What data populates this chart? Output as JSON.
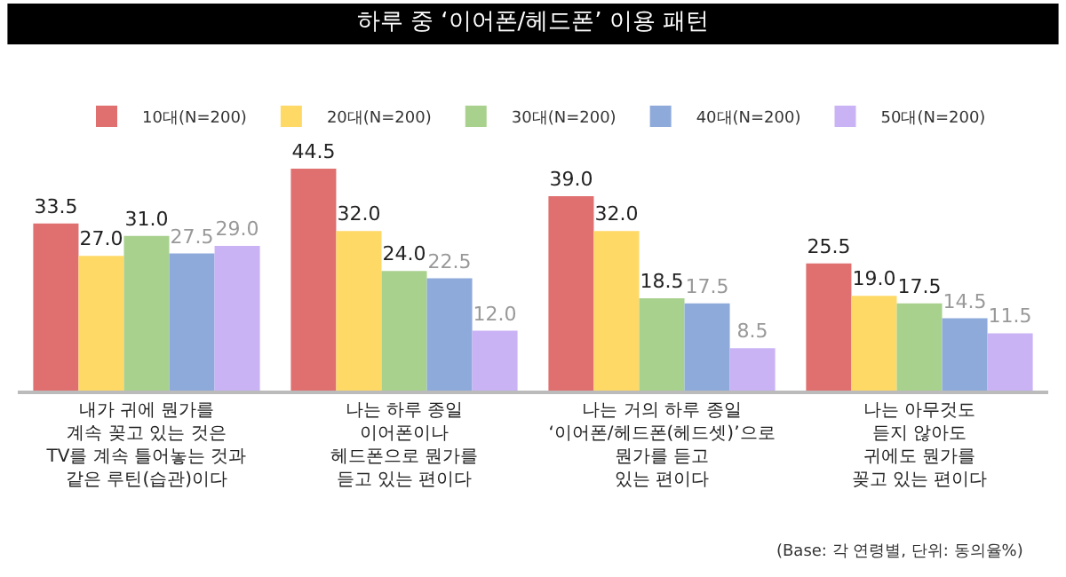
{
  "chart_data": {
    "type": "bar",
    "title": "하루 중 ‘이어폰/헤드폰’ 이용 패턴",
    "categories": [
      "내가 귀에 뭔가를\n계속 꽂고 있는 것은\nTV를 계속 틀어놓는 것과\n같은 루틴(습관)이다",
      "나는 하루 종일\n이어폰이나\n헤드폰으로 뭔가를\n듣고 있는 편이다",
      "나는 거의 하루 종일\n‘이어폰/헤드폰(헤드셋)’으로\n뭔가를 듣고\n있는 편이다",
      "나는 아무것도\n듣지 않아도\n귀에도 뭔가를\n꽂고 있는 편이다"
    ],
    "series": [
      {
        "name": "10대(N=200)",
        "color": "#e07070",
        "values": [
          33.5,
          44.5,
          39.0,
          25.5
        ],
        "value_labels": [
          "33.5",
          "44.5",
          "39.0",
          "25.5"
        ]
      },
      {
        "name": "20대(N=200)",
        "color": "#ffd966",
        "values": [
          27.0,
          32.0,
          32.0,
          19.0
        ],
        "value_labels": [
          "27.0",
          "32.0",
          "32.0",
          "19.0"
        ]
      },
      {
        "name": "30대(N=200)",
        "color": "#a9d18e",
        "values": [
          31.0,
          24.0,
          18.5,
          17.5
        ],
        "value_labels": [
          "31.0",
          "24.0",
          "18.5",
          "17.5"
        ]
      },
      {
        "name": "40대(N=200)",
        "color": "#8eaadb",
        "values": [
          27.5,
          22.5,
          17.5,
          14.5
        ],
        "value_labels": [
          "27.5",
          "22.5",
          "17.5",
          "14.5"
        ]
      },
      {
        "name": "50대(N=200)",
        "color": "#c9b3f5",
        "values": [
          29.0,
          12.0,
          8.5,
          11.5
        ],
        "value_labels": [
          "29.0",
          "12.0",
          "8.5",
          "11.5"
        ]
      }
    ],
    "legend": "top",
    "annotations": [
      "(Base: 각 연령별, 단위: 동의율%)"
    ]
  }
}
